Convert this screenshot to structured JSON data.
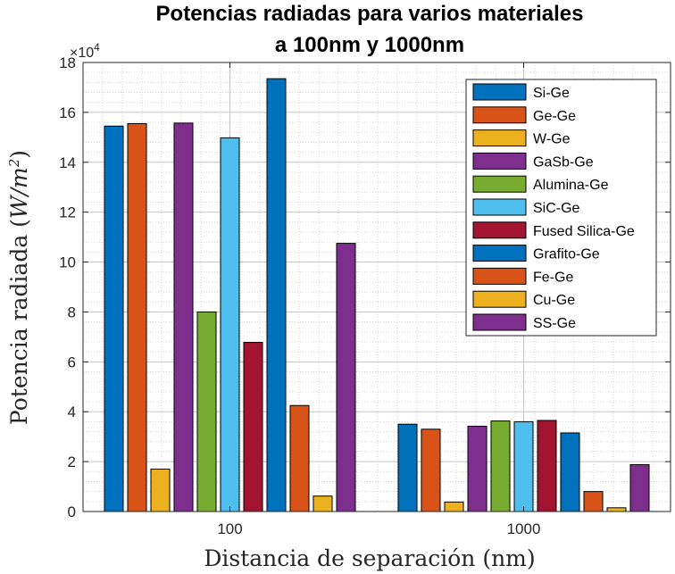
{
  "chart_data": {
    "type": "bar",
    "title": [
      "Potencias radiadas para varios materiales",
      "a 100nm y 1000nm"
    ],
    "xlabel": "Distancia de separación (nm)",
    "ylabel_text": "Potencia radiada (",
    "ylabel_unit": "W/m",
    "ylabel_exp": "2",
    "ylabel_close": ")",
    "y_multiplier": "×10",
    "y_multiplier_exp": "4",
    "categories": [
      "100",
      "1000"
    ],
    "ylim": [
      0,
      180000
    ],
    "yticks": [
      0,
      20000,
      40000,
      60000,
      80000,
      100000,
      120000,
      140000,
      160000,
      180000
    ],
    "ytick_labels": [
      "0",
      "2",
      "4",
      "6",
      "8",
      "10",
      "12",
      "14",
      "16",
      "18"
    ],
    "grid": true,
    "legend_position": "top-right",
    "series": [
      {
        "name": "Si-Ge",
        "color": "#0072BD",
        "values": [
          154500,
          35000
        ]
      },
      {
        "name": "Ge-Ge",
        "color": "#D95319",
        "values": [
          155500,
          33000
        ]
      },
      {
        "name": "W-Ge",
        "color": "#EDB120",
        "values": [
          17000,
          3800
        ]
      },
      {
        "name": "GaSb-Ge",
        "color": "#7E2F8E",
        "values": [
          155700,
          34200
        ]
      },
      {
        "name": "Alumina-Ge",
        "color": "#77AC30",
        "values": [
          80000,
          36300
        ]
      },
      {
        "name": "SiC-Ge",
        "color": "#4DBEEE",
        "values": [
          149800,
          36000
        ]
      },
      {
        "name": "Fused Silica-Ge",
        "color": "#A2142F",
        "values": [
          67800,
          36500
        ]
      },
      {
        "name": "Grafito-Ge",
        "color": "#0072BD",
        "values": [
          173500,
          31500
        ]
      },
      {
        "name": "Fe-Ge",
        "color": "#D95319",
        "values": [
          42500,
          8000
        ]
      },
      {
        "name": "Cu-Ge",
        "color": "#EDB120",
        "values": [
          6200,
          1500
        ]
      },
      {
        "name": "SS-Ge",
        "color": "#7E2F8E",
        "values": [
          107500,
          18800
        ]
      }
    ]
  }
}
